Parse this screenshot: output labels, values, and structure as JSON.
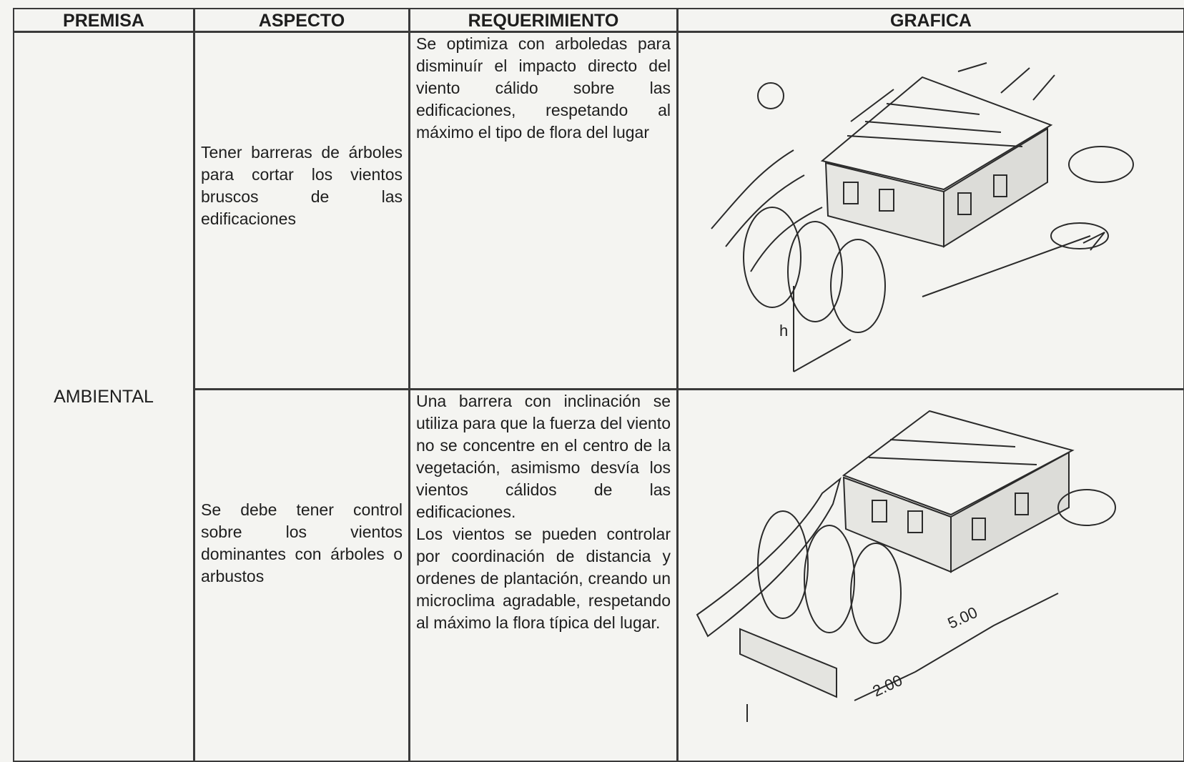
{
  "table": {
    "headers": [
      "PREMISA",
      "ASPECTO",
      "REQUERIMIENTO",
      "GRAFICA"
    ],
    "premisa": "AMBIENTAL",
    "rows": [
      {
        "aspecto": "Tener barreras de árboles para cortar los vientos bruscos de las edificaciones",
        "requerimiento": [
          "Se optimiza con arboledas para disminuír el impacto directo del viento cálido sobre las edificaciones, respetando al máximo el tipo de flora del lugar"
        ],
        "grafica_labels": [
          "h"
        ]
      },
      {
        "aspecto": "Se debe tener control sobre los vientos dominantes con árboles o arbustos",
        "requerimiento": [
          "Una barrera con inclinación se utiliza para que la fuerza del viento no se concentre en el centro de la vegetación, asimismo desvía los vientos cálidos de las edificaciones.",
          "Los vientos se pueden controlar por coordinación de distancia y ordenes de plantación, creando un microclima agradable, respetando al máximo la flora típica del lugar."
        ],
        "grafica_labels": [
          "5.00",
          "2.00"
        ]
      }
    ]
  }
}
